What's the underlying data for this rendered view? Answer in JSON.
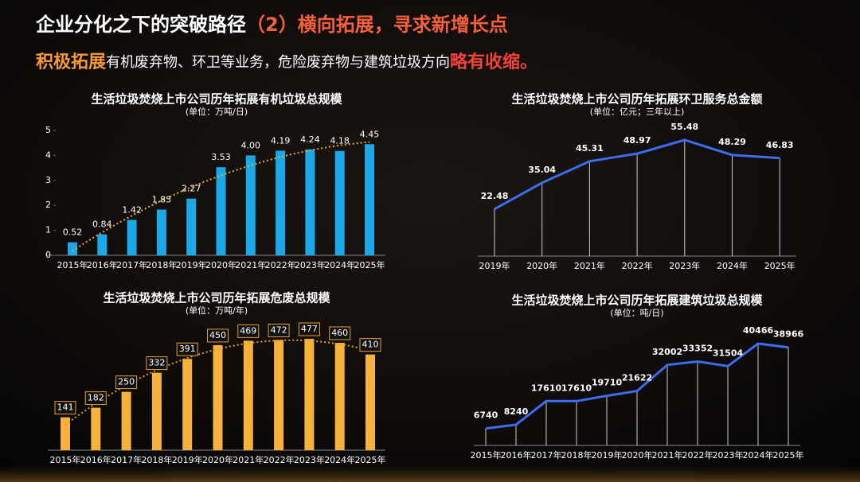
{
  "header": {
    "title": [
      {
        "text": "企业分化之下的突破路径",
        "color": "#ffffff"
      },
      {
        "text": "（2）横向拓展，寻求新增长点",
        "color": "#f5603a"
      }
    ],
    "subtitle": [
      {
        "text": "积极拓展",
        "color": "#f59a35"
      },
      {
        "text": "有机废弃物、环卫等业务，危险废弃物与建筑垃圾方向",
        "color": "#ffffff"
      },
      {
        "text": "略有收缩。",
        "color": "#f0433a"
      }
    ]
  },
  "chart_data": [
    {
      "type": "bar",
      "title": "生活垃圾焚烧上市公司历年拓展有机垃圾总规模",
      "subtitle": "(单位：万吨/日)",
      "categories": [
        "2015年",
        "2016年",
        "2017年",
        "2018年",
        "2019年",
        "2020年",
        "2021年",
        "2022年",
        "2023年",
        "2024年",
        "2025年"
      ],
      "values": [
        0.52,
        0.84,
        1.42,
        1.83,
        2.27,
        3.53,
        4.0,
        4.19,
        4.24,
        4.18,
        4.45
      ],
      "value_labels": [
        "0.52",
        "0.84",
        "1.42",
        "1.83",
        "2.27",
        "3.53",
        "4.00",
        "4.19",
        "4.24",
        "4.18",
        "4.45"
      ],
      "color": "#1ba8e8",
      "ylim": [
        0,
        5
      ],
      "yticks": [
        0,
        1,
        2,
        3,
        4,
        5
      ],
      "trendline": true,
      "trendline_color": "#e8b020",
      "label_box": false
    },
    {
      "type": "line",
      "title": "生活垃圾焚烧上市公司历年拓展环卫服务总金额",
      "subtitle": "(单位：亿元；三年以上)",
      "categories": [
        "2019年",
        "2020年",
        "2021年",
        "2022年",
        "2023年",
        "2024年",
        "2025年"
      ],
      "values": [
        22.48,
        35.04,
        45.31,
        48.97,
        55.48,
        48.29,
        46.83
      ],
      "color": "#3b6df0"
    },
    {
      "type": "bar",
      "title": "生活垃圾焚烧上市公司历年拓展危废总规模",
      "subtitle": "(单位：万吨/年)",
      "categories": [
        "2015年",
        "2016年",
        "2017年",
        "2018年",
        "2019年",
        "2020年",
        "2021年",
        "2022年",
        "2023年",
        "2024年",
        "2025年"
      ],
      "values": [
        141,
        182,
        250,
        332,
        391,
        450,
        469,
        472,
        477,
        460,
        410
      ],
      "color": "#f7b23b",
      "trendline": true,
      "trendline_color": "#e8a020",
      "label_box": true
    },
    {
      "type": "line",
      "title": "生活垃圾焚烧上市公司历年拓展建筑垃圾总规模",
      "subtitle": "(单位：吨/日)",
      "categories": [
        "2015年",
        "2016年",
        "2017年",
        "2018年",
        "2019年",
        "2020年",
        "2021年",
        "2022年",
        "2023年",
        "2024年",
        "2025年"
      ],
      "values": [
        6740,
        8240,
        17610,
        17610,
        19710,
        21622,
        32002,
        33352,
        31504,
        40466,
        38966
      ],
      "color": "#3b6df0"
    }
  ]
}
